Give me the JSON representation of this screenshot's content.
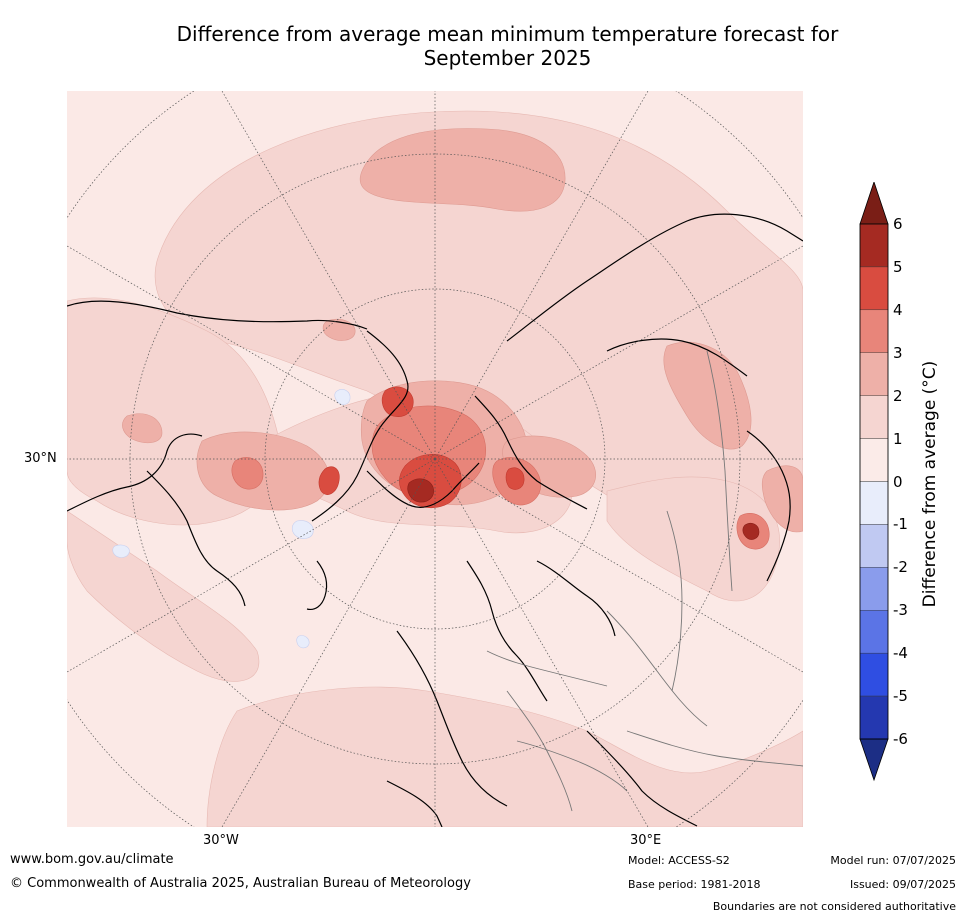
{
  "title": {
    "line1": "Difference from average mean minimum temperature forecast for",
    "line2": "September 2025"
  },
  "map": {
    "projection": "north-polar-stereographic",
    "lat_labels": [
      "30°N"
    ],
    "lon_labels": [
      "30°W",
      "30°E"
    ]
  },
  "colorbar": {
    "title": "Difference from average (°C)",
    "ticks": [
      "6",
      "5",
      "4",
      "3",
      "2",
      "1",
      "0",
      "-1",
      "-2",
      "-3",
      "-4",
      "-5",
      "-6"
    ],
    "colors": [
      "#a52a22",
      "#d94c40",
      "#e8857a",
      "#eeb0a8",
      "#f5d5d1",
      "#fbebe8",
      "#e8edfb",
      "#c0c9f2",
      "#8a9cec",
      "#5b74e6",
      "#2f4ee2",
      "#2438b0"
    ],
    "over_color": "#7a1e16",
    "under_color": "#1c2e85"
  },
  "footer": {
    "website": "www.bom.gov.au/climate",
    "copyright": "© Commonwealth of Australia 2025, Australian Bureau of Meteorology",
    "model": "Model: ACCESS-S2",
    "base_period": "Base period: 1981-2018",
    "model_run": "Model run: 07/07/2025",
    "issued": "Issued: 09/07/2025",
    "disclaimer": "Boundaries are not considered authoritative"
  }
}
